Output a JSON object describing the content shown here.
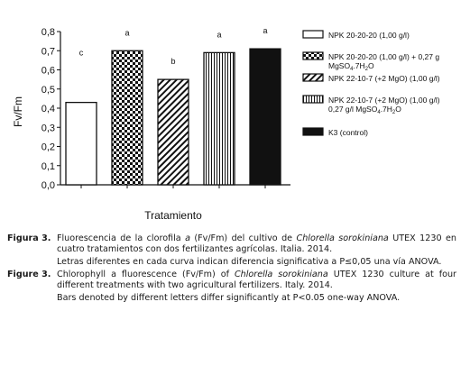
{
  "chart_data": {
    "type": "bar",
    "ylabel": "Fv/Fm",
    "xlabel": "Tratamiento",
    "ylim": [
      0,
      0.8
    ],
    "yticks": [
      "0,0",
      "0,1",
      "0,2",
      "0,3",
      "0,4",
      "0,5",
      "0,6",
      "0,7",
      "0,8"
    ],
    "grid": false,
    "legend_position": "right",
    "categories": [
      "NPK 20-20-20 (1,00 g/l)",
      "NPK 20-20-20 (1,00 g/l) + 0,27 g/l MgSO4.7H2O",
      "NPK 22-10-7 (+2 MgO) (1,00 g/l)",
      "NPK 22-10-7 (+2 MgO) (1,00 g/l) + 0,27 g/l MgSO4.7H2O",
      "K3 (control)"
    ],
    "values": [
      0.43,
      0.7,
      0.55,
      0.69,
      0.71
    ],
    "letters": [
      "c",
      "a",
      "b",
      "a",
      "a"
    ],
    "patterns": [
      "white",
      "checker",
      "diagonal",
      "vertical",
      "black"
    ]
  },
  "legend": [
    {
      "lines": [
        {
          "text": "NPK 20-20-20 (1,00 g/l)"
        }
      ]
    },
    {
      "lines": [
        {
          "text": "NPK 20-20-20 (1,00 g/l) + 0,27 g"
        },
        {
          "parts": [
            "MgSO",
            "4",
            ".7H",
            "2",
            "O"
          ]
        }
      ]
    },
    {
      "lines": [
        {
          "text": "NPK 22-10-7 (+2 MgO) (1,00 g/l)"
        }
      ]
    },
    {
      "lines": [
        {
          "text": "NPK 22-10-7 (+2 MgO) (1,00 g/l)"
        },
        {
          "parts": [
            "0,27 g/l MgSO",
            "4",
            ".7H",
            "2",
            "O"
          ]
        }
      ]
    },
    {
      "lines": [
        {
          "text": "K3 (control)"
        }
      ]
    }
  ],
  "caption": {
    "es": {
      "label": "Figura 3.",
      "pre": "Fluorescencia de la clorofila ",
      "italic1": "a",
      "mid": " (Fv/Fm) del cultivo de ",
      "italic2": "Chlorella sorokiniana",
      "post": " UTEX 1230 en cuatro tratamientos con dos fertilizantes agrícolas. Italia. 2014.",
      "note": "Letras diferentes en cada curva indican diferencia significativa a P≤0,05 una vía ANOVA."
    },
    "en": {
      "label": "Figure 3.",
      "pre": "Chlorophyll a fluorescence (Fv/Fm) of ",
      "italic": "Chlorella sorokiniana",
      "post": " UTEX 1230 culture at four different treatments with two agricultural fertilizers. Italy. 2014.",
      "note": "Bars denoted by different letters differ significantly at P<0.05 one-way ANOVA."
    }
  }
}
